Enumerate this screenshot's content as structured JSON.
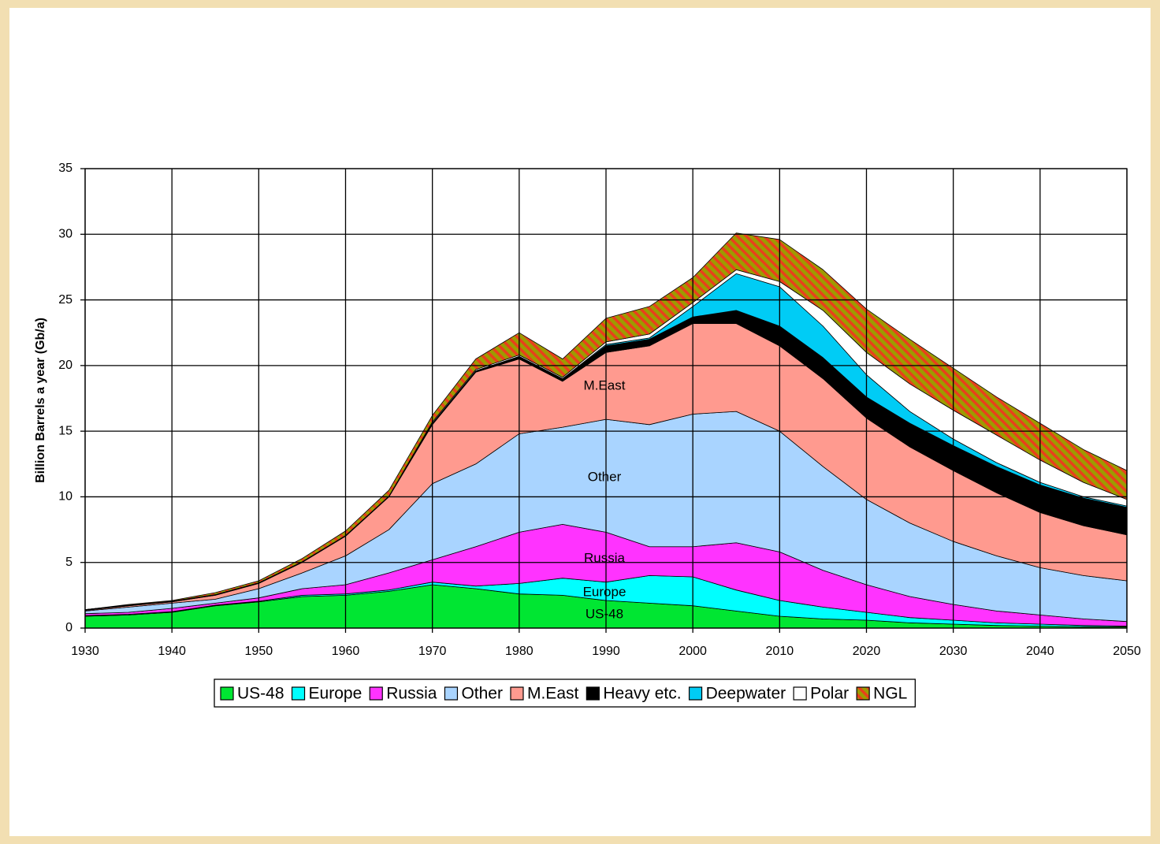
{
  "chart_data": {
    "type": "stacked_area",
    "y_label": "Billion Barrels a year (Gb/a)",
    "x": [
      1930,
      1935,
      1940,
      1945,
      1950,
      1955,
      1960,
      1965,
      1970,
      1975,
      1980,
      1985,
      1990,
      1995,
      2000,
      2005,
      2010,
      2015,
      2020,
      2025,
      2030,
      2035,
      2040,
      2045,
      2050
    ],
    "series": [
      {
        "name": "US-48",
        "color": "#00e632",
        "values": [
          0.9,
          1.0,
          1.2,
          1.7,
          2.0,
          2.4,
          2.5,
          2.8,
          3.3,
          3.0,
          2.6,
          2.5,
          2.1,
          1.9,
          1.7,
          1.3,
          0.9,
          0.7,
          0.6,
          0.4,
          0.3,
          0.2,
          0.15,
          0.1,
          0.1
        ]
      },
      {
        "name": "Europe",
        "color": "#00ffff",
        "values": [
          0.05,
          0.05,
          0.05,
          0.05,
          0.05,
          0.1,
          0.1,
          0.1,
          0.2,
          0.2,
          0.8,
          1.3,
          1.4,
          2.1,
          2.2,
          1.6,
          1.2,
          0.9,
          0.6,
          0.4,
          0.3,
          0.2,
          0.15,
          0.1,
          0.05
        ]
      },
      {
        "name": "Russia",
        "color": "#ff33ff",
        "values": [
          0.15,
          0.15,
          0.25,
          0.15,
          0.25,
          0.5,
          0.7,
          1.3,
          1.7,
          3.0,
          3.9,
          4.1,
          3.8,
          2.2,
          2.3,
          3.6,
          3.7,
          2.8,
          2.1,
          1.6,
          1.2,
          0.9,
          0.7,
          0.5,
          0.35
        ]
      },
      {
        "name": "Other",
        "color": "#a9d4ff",
        "values": [
          0.2,
          0.4,
          0.4,
          0.3,
          0.7,
          1.2,
          2.2,
          3.3,
          5.8,
          6.3,
          7.5,
          7.4,
          8.6,
          9.3,
          10.1,
          10.0,
          9.2,
          7.9,
          6.5,
          5.6,
          4.8,
          4.2,
          3.6,
          3.3,
          3.1
        ]
      },
      {
        "name": "M.East",
        "color": "#ff9a8f",
        "values": [
          0.05,
          0.1,
          0.1,
          0.3,
          0.4,
          0.8,
          1.5,
          2.5,
          4.5,
          7.0,
          5.7,
          3.5,
          5.1,
          6.0,
          6.9,
          6.7,
          6.5,
          6.7,
          6.2,
          5.8,
          5.4,
          4.8,
          4.2,
          3.8,
          3.5
        ]
      },
      {
        "name": "Heavy etc.",
        "color": "#000000",
        "values": [
          0.05,
          0.05,
          0.05,
          0.05,
          0.05,
          0.05,
          0.05,
          0.05,
          0.1,
          0.1,
          0.2,
          0.2,
          0.5,
          0.5,
          0.5,
          1.0,
          1.5,
          1.6,
          1.6,
          1.8,
          1.9,
          2.0,
          2.1,
          2.1,
          2.1
        ]
      },
      {
        "name": "Deepwater",
        "color": "#00ccf5",
        "values": [
          0,
          0,
          0,
          0,
          0,
          0,
          0,
          0,
          0,
          0,
          0,
          0,
          0.1,
          0.1,
          0.8,
          2.8,
          3.0,
          2.4,
          1.7,
          0.9,
          0.5,
          0.3,
          0.2,
          0.1,
          0.1
        ]
      },
      {
        "name": "Polar",
        "color": "#ffffff",
        "values": [
          0,
          0,
          0,
          0,
          0,
          0,
          0,
          0,
          0.1,
          0.1,
          0.1,
          0.1,
          0.2,
          0.3,
          0.3,
          0.3,
          0.4,
          1.2,
          1.7,
          2.1,
          2.2,
          2.1,
          1.7,
          1.1,
          0.5
        ]
      },
      {
        "name": "NGL",
        "color": "#9c9c00",
        "hatch_color": "#e8401c",
        "values": [
          0,
          0.05,
          0.05,
          0.15,
          0.15,
          0.25,
          0.35,
          0.45,
          0.5,
          0.8,
          1.7,
          1.4,
          1.8,
          2.1,
          1.9,
          2.8,
          3.2,
          3.1,
          3.3,
          3.4,
          3.2,
          2.9,
          2.8,
          2.5,
          2.2
        ]
      }
    ],
    "annotations": [
      "M.East",
      "Other",
      "Russia",
      "Europe",
      "US-48"
    ],
    "xlim": [
      1930,
      2050
    ],
    "xticks": [
      1930,
      1940,
      1950,
      1960,
      1970,
      1980,
      1990,
      2000,
      2010,
      2020,
      2030,
      2040,
      2050
    ],
    "ylim": [
      0,
      35
    ],
    "yticks": [
      0,
      5,
      10,
      15,
      20,
      25,
      30,
      35
    ],
    "grid": true,
    "legend": "bottom"
  }
}
